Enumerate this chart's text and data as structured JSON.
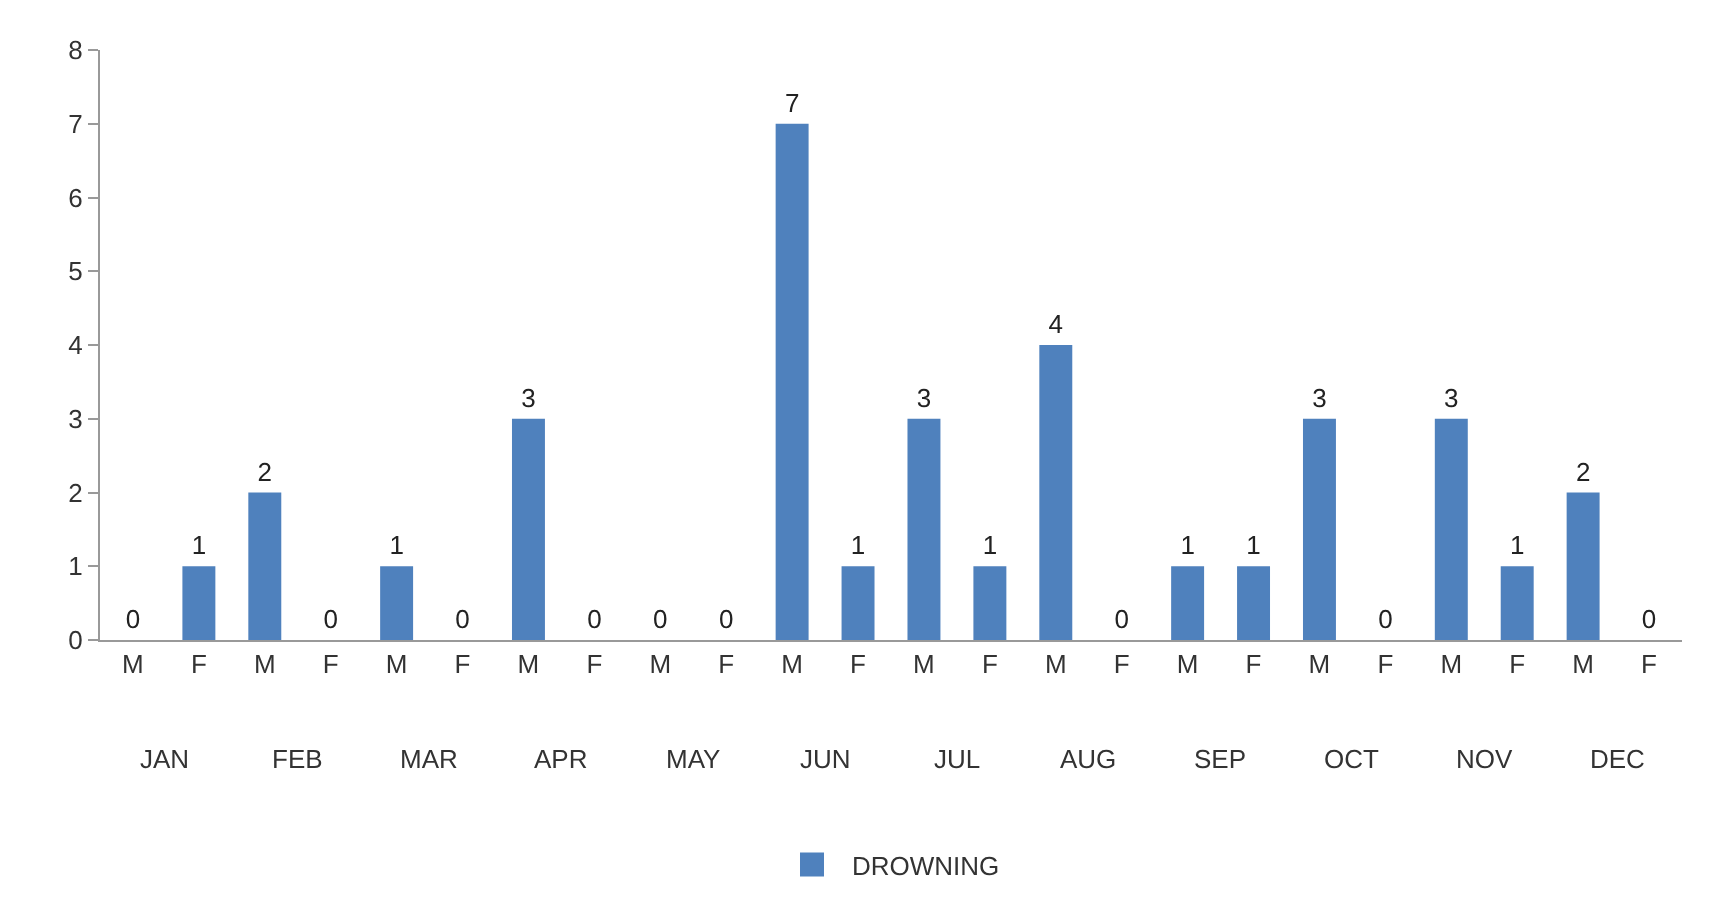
{
  "chart_data": {
    "type": "bar",
    "categories": [
      "M",
      "F",
      "M",
      "F",
      "M",
      "F",
      "M",
      "F",
      "M",
      "F",
      "M",
      "F",
      "M",
      "F",
      "M",
      "F",
      "M",
      "F",
      "M",
      "F",
      "M",
      "F",
      "M",
      "F"
    ],
    "series": [
      {
        "name": "DROWNING",
        "color": "#4f81bd",
        "values": [
          0,
          1,
          2,
          0,
          1,
          0,
          3,
          0,
          0,
          0,
          7,
          1,
          3,
          1,
          4,
          0,
          1,
          1,
          3,
          0,
          3,
          1,
          2,
          0
        ]
      }
    ],
    "annotations": [
      "JAN",
      "FEB",
      "MAR",
      "APR",
      "MAY",
      "JUN",
      "JUL",
      "AUG",
      "SEP",
      "OCT",
      "NOV",
      "DEC"
    ],
    "ylim": [
      0,
      8
    ],
    "yticks": [
      0,
      1,
      2,
      3,
      4,
      5,
      6,
      7,
      8
    ],
    "grid": false,
    "data_labels": true,
    "legend": "bottom"
  }
}
